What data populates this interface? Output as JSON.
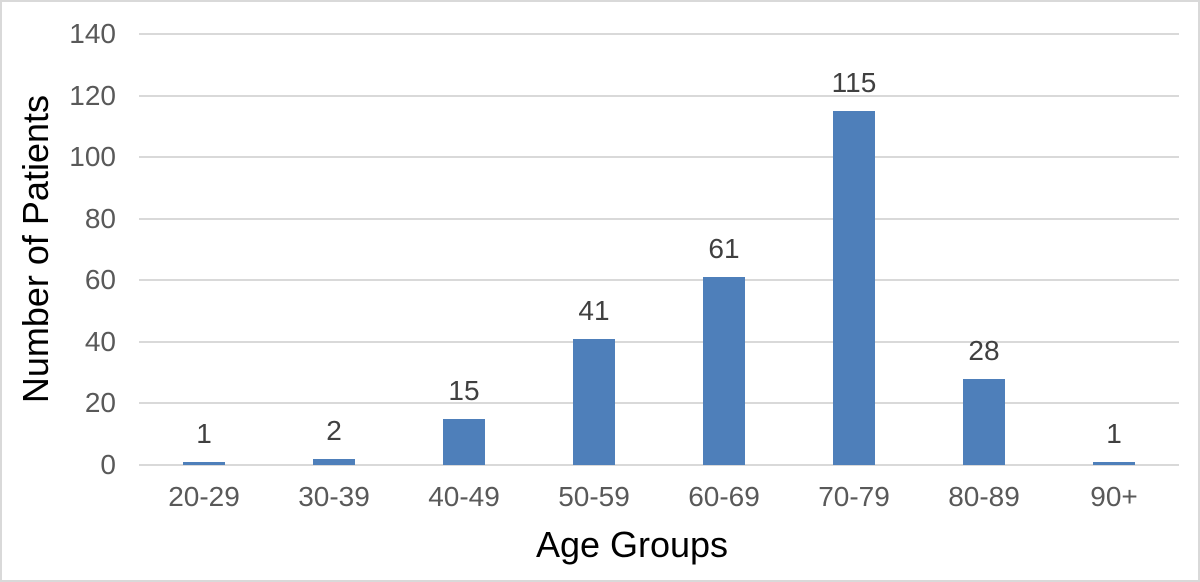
{
  "chart_data": {
    "type": "bar",
    "title": "",
    "categories": [
      "20-29",
      "30-39",
      "40-49",
      "50-59",
      "60-69",
      "70-79",
      "80-89",
      "90+"
    ],
    "values": [
      1,
      2,
      15,
      41,
      61,
      115,
      28,
      1
    ],
    "data_labels": [
      "1",
      "2",
      "15",
      "41",
      "61",
      "115",
      "28",
      "1"
    ],
    "xlabel": "Age Groups",
    "ylabel": "Number of Patients",
    "ylim": [
      0,
      140
    ],
    "yticks": [
      0,
      20,
      40,
      60,
      80,
      100,
      120,
      140
    ],
    "grid": "horizontal-only",
    "legend": "none",
    "colors": {
      "bar": "#4e7fba",
      "gridline": "#d9d9d9",
      "axis_line": "#d9d9d9",
      "tick_label": "#595959",
      "data_label": "#404040",
      "axis_title": "#000000",
      "background": "#ffffff",
      "border": "#d9d9d9"
    }
  }
}
